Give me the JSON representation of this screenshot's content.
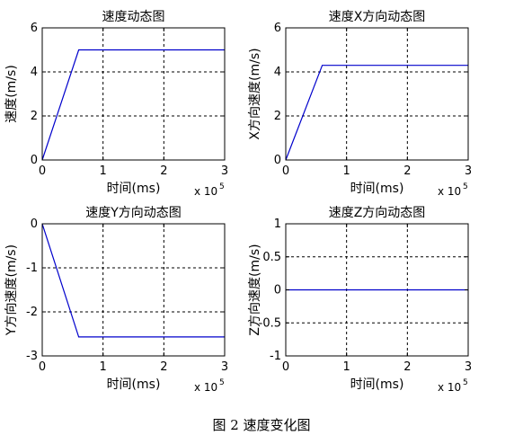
{
  "caption": "图 2  速度变化图",
  "chart_data": [
    {
      "type": "line",
      "title": "速度动态图",
      "xlabel": "时间(ms)",
      "ylabel": "速度(m/s)",
      "x_multiplier_label": "x 10",
      "x_multiplier_exp": "5",
      "xlim": [
        0,
        3
      ],
      "ylim": [
        0,
        6
      ],
      "xticks": [
        0,
        1,
        2,
        3
      ],
      "xtick_labels": [
        "0",
        "1",
        "2",
        "3"
      ],
      "yticks": [
        0,
        2,
        4,
        6
      ],
      "ytick_labels": [
        "0",
        "2",
        "4",
        "6"
      ],
      "grid": true,
      "line_color": "#0000cc",
      "x": [
        0,
        0.6,
        3
      ],
      "y": [
        0,
        5,
        5
      ]
    },
    {
      "type": "line",
      "title": "速度X方向动态图",
      "xlabel": "时间(ms)",
      "ylabel": "X方向速度(m/s)",
      "x_multiplier_label": "x 10",
      "x_multiplier_exp": "5",
      "xlim": [
        0,
        3
      ],
      "ylim": [
        0,
        6
      ],
      "xticks": [
        0,
        1,
        2,
        3
      ],
      "xtick_labels": [
        "0",
        "1",
        "2",
        "3"
      ],
      "yticks": [
        0,
        2,
        4,
        6
      ],
      "ytick_labels": [
        "0",
        "2",
        "4",
        "6"
      ],
      "grid": true,
      "line_color": "#0000cc",
      "x": [
        0,
        0.6,
        3
      ],
      "y": [
        0,
        4.3,
        4.3
      ]
    },
    {
      "type": "line",
      "title": "速度Y方向动态图",
      "xlabel": "时间(ms)",
      "ylabel": "Y方向速度(m/s)",
      "x_multiplier_label": "x 10",
      "x_multiplier_exp": "5",
      "xlim": [
        0,
        3
      ],
      "ylim": [
        -3,
        0
      ],
      "xticks": [
        0,
        1,
        2,
        3
      ],
      "xtick_labels": [
        "0",
        "1",
        "2",
        "3"
      ],
      "yticks": [
        -3,
        -2,
        -1,
        0
      ],
      "ytick_labels": [
        "-3",
        "-2",
        "-1",
        "0"
      ],
      "grid": true,
      "line_color": "#0000cc",
      "x": [
        0,
        0.6,
        3
      ],
      "y": [
        0,
        -2.57,
        -2.57
      ]
    },
    {
      "type": "line",
      "title": "速度Z方向动态图",
      "xlabel": "时间(ms)",
      "ylabel": "Z方向速度(m/s)",
      "x_multiplier_label": "x 10",
      "x_multiplier_exp": "5",
      "xlim": [
        0,
        3
      ],
      "ylim": [
        -1,
        1
      ],
      "xticks": [
        0,
        1,
        2,
        3
      ],
      "xtick_labels": [
        "0",
        "1",
        "2",
        "3"
      ],
      "yticks": [
        -1,
        -0.5,
        0,
        0.5,
        1
      ],
      "ytick_labels": [
        "-1",
        "-0.5",
        "0",
        "0.5",
        "1"
      ],
      "grid": true,
      "line_color": "#0000cc",
      "x": [
        0,
        3
      ],
      "y": [
        0,
        0
      ]
    }
  ]
}
